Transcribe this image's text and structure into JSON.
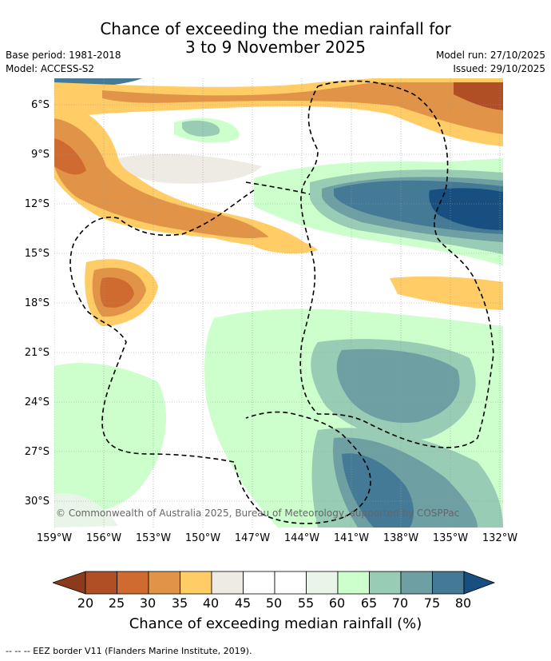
{
  "title_line1": "Chance of exceeding the median rainfall for",
  "title_line2": "3 to 9 November 2025",
  "base_period": "Base period: 1981-2018",
  "model": "Model: ACCESS-S2",
  "model_run": "Model run: 27/10/2025",
  "issued": "Issued: 29/10/2025",
  "copyright": "© Commonwealth of Australia 2025, Bureau of Meteorology, supported by COSPPac",
  "lat_labels": [
    "6°S",
    "9°S",
    "12°S",
    "15°S",
    "18°S",
    "21°S",
    "24°S",
    "27°S",
    "30°S"
  ],
  "lon_labels": [
    "159°W",
    "156°W",
    "153°W",
    "150°W",
    "147°W",
    "144°W",
    "141°W",
    "138°W",
    "135°W",
    "132°W"
  ],
  "colorbar": {
    "ticks": [
      "20",
      "25",
      "30",
      "35",
      "40",
      "45",
      "50",
      "55",
      "60",
      "65",
      "70",
      "75",
      "80"
    ],
    "colors": [
      "#8b3a1c",
      "#b04f25",
      "#cf6b30",
      "#e19447",
      "#ffcc66",
      "#eeebe4",
      "#ffffff",
      "#ffffff",
      "#e8f5e8",
      "#ccffcc",
      "#99ccb5",
      "#6e9fa3",
      "#447a95",
      "#174f80"
    ],
    "label": "Chance of exceeding median rainfall (%)"
  },
  "legend_line": "--  --  -- EEZ border V11 (Flanders Marine Institute, 2019)."
}
